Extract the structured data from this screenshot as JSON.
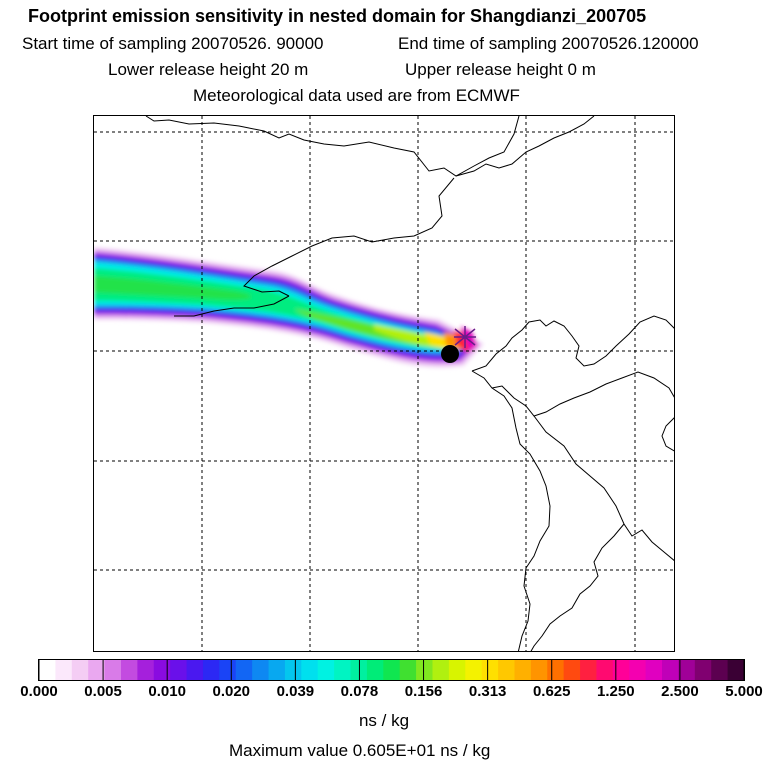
{
  "title": "Footprint emission sensitivity in nested domain for Shangdianzi_200705",
  "start_label": "Start time of sampling 20070526. 90000",
  "end_label": "End time of sampling 20070526.120000",
  "lower_label": "Lower release height   20 m",
  "upper_label": "Upper release height    0 m",
  "met_label": "Meteorological data used are from ECMWF",
  "units": "ns / kg",
  "max_label": "Maximum value  0.605E+01 ns / kg",
  "chart_data": {
    "type": "heatmap",
    "colorbar": {
      "ticks": [
        "0.000",
        "0.005",
        "0.010",
        "0.020",
        "0.039",
        "0.078",
        "0.156",
        "0.313",
        "0.625",
        "1.250",
        "2.500",
        "5.000"
      ],
      "units": "ns / kg",
      "colors": [
        "#ffffff",
        "#fbe8fb",
        "#f4cdf4",
        "#eaa8f0",
        "#d97be8",
        "#c34be0",
        "#a520dc",
        "#8a0be0",
        "#6a10ea",
        "#4a18f0",
        "#2c28f4",
        "#1a44f6",
        "#1266f4",
        "#0e88f2",
        "#08a8f0",
        "#04c6ee",
        "#00e0ee",
        "#00f2e2",
        "#00f4c2",
        "#00f0a0",
        "#00ec78",
        "#10e650",
        "#40e030",
        "#80e820",
        "#b0f010",
        "#d8f400",
        "#f4f200",
        "#ffe000",
        "#ffc800",
        "#ffb000",
        "#ff9400",
        "#ff7000",
        "#ff4a10",
        "#ff2040",
        "#ff0a70",
        "#ff0098",
        "#f400b0",
        "#e000c0",
        "#c000b8",
        "#a00098",
        "#800070",
        "#5c0050",
        "#3a0034"
      ]
    },
    "grid": true,
    "maximum_value": 6.05,
    "receptor": "Shangdianzi"
  }
}
